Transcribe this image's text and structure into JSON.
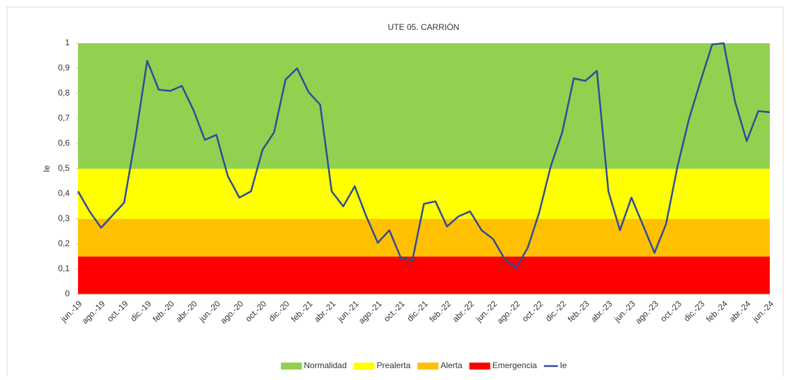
{
  "chart_data": {
    "type": "line",
    "title": "UTE 05. CARRIÓN",
    "y_label": "Ie",
    "categories": [
      "jun.-19",
      null,
      "ago.-19",
      null,
      "oct.-19",
      null,
      "dic.-19",
      null,
      "feb.-20",
      null,
      "abr.-20",
      null,
      "jun.-20",
      null,
      "ago.-20",
      null,
      "oct.-20",
      null,
      "dic.-20",
      null,
      "feb.-21",
      null,
      "abr.-21",
      null,
      "jun.-21",
      null,
      "ago.-21",
      null,
      "oct.-21",
      null,
      "dic.-21",
      null,
      "feb.-22",
      null,
      "abr.-22",
      null,
      "jun.-22",
      null,
      "ago.-22",
      null,
      "oct.-22",
      null,
      "dic.-22",
      null,
      "feb.-23",
      null,
      "abr.-23",
      null,
      "jun.-23",
      null,
      "ago.-23",
      null,
      "oct.-23",
      null,
      "dic.-23",
      null,
      "feb.-24",
      null,
      "abr.-24",
      null,
      "jun.-24"
    ],
    "bands": [
      {
        "name": "Emergencia",
        "color": "#ff0000",
        "value": 0.15
      },
      {
        "name": "Alerta",
        "color": "#ffc000",
        "value": 0.15
      },
      {
        "name": "Prealerta",
        "color": "#ffff00",
        "value": 0.2
      },
      {
        "name": "Normalidad",
        "color": "#92d050",
        "value": 0.5
      }
    ],
    "series": [
      {
        "name": "Ie",
        "color": "#2f4b9a",
        "values": [
          0.41,
          0.33,
          0.265,
          0.315,
          0.365,
          0.63,
          0.93,
          0.815,
          0.81,
          0.83,
          0.735,
          0.615,
          0.635,
          0.47,
          0.385,
          0.41,
          0.575,
          0.645,
          0.855,
          0.9,
          0.805,
          0.755,
          0.41,
          0.35,
          0.43,
          0.31,
          0.205,
          0.255,
          0.145,
          0.135,
          0.36,
          0.37,
          0.27,
          0.31,
          0.33,
          0.255,
          0.22,
          0.14,
          0.105,
          0.185,
          0.325,
          0.51,
          0.645,
          0.86,
          0.85,
          0.89,
          0.41,
          0.255,
          0.385,
          0.275,
          0.165,
          0.28,
          0.51,
          0.7,
          0.85,
          0.995,
          1.0,
          0.765,
          0.61,
          0.73,
          0.725
        ]
      }
    ],
    "ylim": [
      0,
      1
    ],
    "yticks": [
      0,
      {
        "value": 0.1,
        "label": "0,1"
      },
      {
        "value": 0.2,
        "label": "0,2"
      },
      {
        "value": 0.3,
        "label": "0,3"
      },
      {
        "value": 0.4,
        "label": "0,4"
      },
      {
        "value": 0.5,
        "label": "0,5"
      },
      {
        "value": 0.6,
        "label": "0,6"
      },
      {
        "value": 0.7,
        "label": "0,7"
      },
      {
        "value": 0.8,
        "label": "0,8"
      },
      {
        "value": 0.9,
        "label": "0,9"
      },
      1
    ],
    "legend": "bottom"
  }
}
